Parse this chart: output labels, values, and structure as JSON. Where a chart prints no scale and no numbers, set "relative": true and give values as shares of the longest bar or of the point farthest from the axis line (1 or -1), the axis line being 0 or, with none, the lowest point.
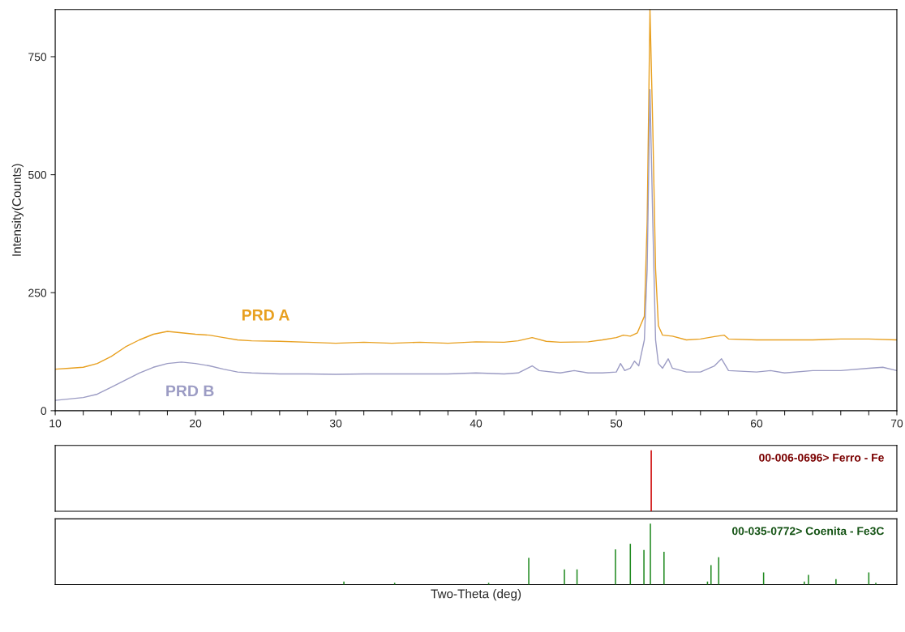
{
  "chart_data": [
    {
      "type": "line",
      "ylabel": "Intensity(Counts)",
      "xlim": [
        10,
        70
      ],
      "ylim": [
        0,
        850
      ],
      "xticks": [
        10,
        {
          "value": 12,
          "label": null
        },
        {
          "value": 14,
          "label": null
        },
        {
          "value": 16,
          "label": null
        },
        {
          "value": 18,
          "label": null
        },
        20,
        {
          "value": 22,
          "label": null
        },
        {
          "value": 24,
          "label": null
        },
        {
          "value": 26,
          "label": null
        },
        {
          "value": 28,
          "label": null
        },
        30,
        {
          "value": 32,
          "label": null
        },
        {
          "value": 34,
          "label": null
        },
        {
          "value": 36,
          "label": null
        },
        {
          "value": 38,
          "label": null
        },
        40,
        {
          "value": 42,
          "label": null
        },
        {
          "value": 44,
          "label": null
        },
        {
          "value": 46,
          "label": null
        },
        {
          "value": 48,
          "label": null
        },
        50,
        {
          "value": 52,
          "label": null
        },
        {
          "value": 54,
          "label": null
        },
        {
          "value": 56,
          "label": null
        },
        {
          "value": 58,
          "label": null
        },
        60,
        {
          "value": 62,
          "label": null
        },
        {
          "value": 64,
          "label": null
        },
        {
          "value": 66,
          "label": null
        },
        {
          "value": 68,
          "label": null
        },
        70
      ],
      "yticks": [
        0,
        250,
        500,
        750
      ],
      "grid": false,
      "legend": false,
      "series": [
        {
          "name": "PRD A",
          "color": "#e8a020",
          "x": [
            10,
            11,
            12,
            13,
            14,
            15,
            16,
            17,
            18,
            19,
            20,
            21,
            22,
            23,
            24,
            26,
            28,
            30,
            32,
            34,
            36,
            38,
            40,
            42,
            43,
            44,
            45,
            46,
            48,
            49,
            50,
            50.5,
            51,
            51.5,
            52,
            52.2,
            52.4,
            52.6,
            52.8,
            53,
            53.3,
            54,
            55,
            56,
            57,
            57.7,
            58,
            60,
            62,
            64,
            66,
            68,
            70
          ],
          "values": [
            88,
            90,
            92,
            100,
            115,
            135,
            150,
            162,
            168,
            165,
            162,
            160,
            155,
            150,
            148,
            147,
            145,
            143,
            145,
            143,
            145,
            143,
            146,
            145,
            148,
            155,
            147,
            145,
            146,
            150,
            155,
            160,
            158,
            165,
            200,
            400,
            850,
            600,
            300,
            180,
            160,
            158,
            150,
            152,
            157,
            160,
            152,
            150,
            150,
            150,
            152,
            152,
            150
          ]
        },
        {
          "name": "PRD B",
          "color": "#9c9cc4",
          "x": [
            10,
            11,
            12,
            13,
            14,
            15,
            16,
            17,
            18,
            19,
            20,
            21,
            22,
            23,
            24,
            26,
            28,
            30,
            32,
            34,
            36,
            38,
            40,
            42,
            43,
            44,
            44.5,
            46,
            47,
            48,
            49,
            50,
            50.3,
            50.6,
            51,
            51.3,
            51.6,
            52,
            52.2,
            52.4,
            52.6,
            52.8,
            53,
            53.3,
            53.7,
            54,
            55,
            56,
            57,
            57.5,
            57.7,
            58,
            60,
            61,
            62,
            64,
            66,
            68,
            69,
            70
          ],
          "values": [
            22,
            25,
            28,
            35,
            50,
            65,
            80,
            92,
            100,
            103,
            100,
            95,
            88,
            82,
            80,
            78,
            78,
            77,
            78,
            78,
            78,
            78,
            80,
            78,
            80,
            95,
            85,
            80,
            85,
            80,
            80,
            82,
            100,
            85,
            90,
            105,
            95,
            150,
            300,
            680,
            400,
            150,
            100,
            90,
            110,
            90,
            82,
            82,
            95,
            110,
            100,
            85,
            82,
            85,
            80,
            85,
            85,
            90,
            92,
            85
          ]
        }
      ]
    },
    {
      "type": "bar",
      "title": "00-006-0696> Ferro - Fe",
      "relative": true,
      "xlim": [
        10,
        70
      ],
      "tick_labels": false,
      "series": [
        {
          "color": "#cc0000",
          "x": [
            52.49
          ],
          "values": [
            1
          ]
        }
      ]
    },
    {
      "type": "bar",
      "title": "00-035-0772> Coenita - Fe3C",
      "xlabel": "Two-Theta (deg)",
      "relative": true,
      "xlim": [
        10,
        70
      ],
      "tick_labels": false,
      "series": [
        {
          "color": "#228b22",
          "x": [
            30.58,
            34.2,
            40.9,
            43.76,
            46.3,
            47.2,
            49.94,
            51.0,
            51.97,
            52.43,
            53.4,
            56.5,
            56.75,
            57.3,
            60.5,
            63.4,
            63.7,
            65.66,
            68.0,
            68.5
          ],
          "values": [
            0.05,
            0.03,
            0.03,
            0.44,
            0.25,
            0.25,
            0.58,
            0.67,
            0.57,
            1.0,
            0.54,
            0.05,
            0.32,
            0.45,
            0.2,
            0.05,
            0.16,
            0.09,
            0.2,
            0.03
          ]
        }
      ]
    }
  ]
}
